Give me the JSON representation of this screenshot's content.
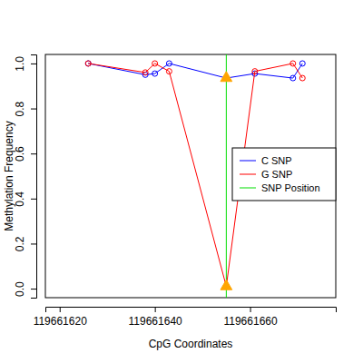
{
  "chart_data": {
    "type": "line",
    "x_label": "CpG Coordinates",
    "y_label": "Methylation Frequency",
    "x": [
      119661626,
      119661638,
      119661640,
      119661643,
      119661655,
      119661661,
      119661669,
      119661671
    ],
    "series": [
      {
        "name": "C SNP",
        "color": "#0000ff",
        "marker": "circle",
        "line_style": "solid",
        "values": [
          1.0,
          0.95,
          0.955,
          1.0,
          0.935,
          0.955,
          0.935,
          1.0
        ]
      },
      {
        "name": "G SNP",
        "color": "#ff0000",
        "marker": "circle",
        "line_style": "solid",
        "values": [
          1.0,
          0.96,
          1.0,
          0.965,
          0.01,
          0.965,
          1.0,
          0.935
        ]
      },
      {
        "name": "SNP Position",
        "color": "#00dd00",
        "type": "vline",
        "x": [
          119661655
        ]
      }
    ],
    "xlim": [
      119661617,
      119661678
    ],
    "ylim": [
      -0.04,
      1.04
    ],
    "xticks": [
      119661620,
      119661640,
      119661660
    ],
    "yticks": [
      {
        "value": 0,
        "label": "0.0"
      },
      {
        "value": 0.2,
        "label": "0.2"
      },
      {
        "value": 0.4,
        "label": "0.4"
      },
      {
        "value": 0.6,
        "label": "0.6"
      },
      {
        "value": 0.8,
        "label": "0.8"
      },
      {
        "value": 1,
        "label": "1.0"
      }
    ],
    "legend": "right",
    "grid": false
  }
}
